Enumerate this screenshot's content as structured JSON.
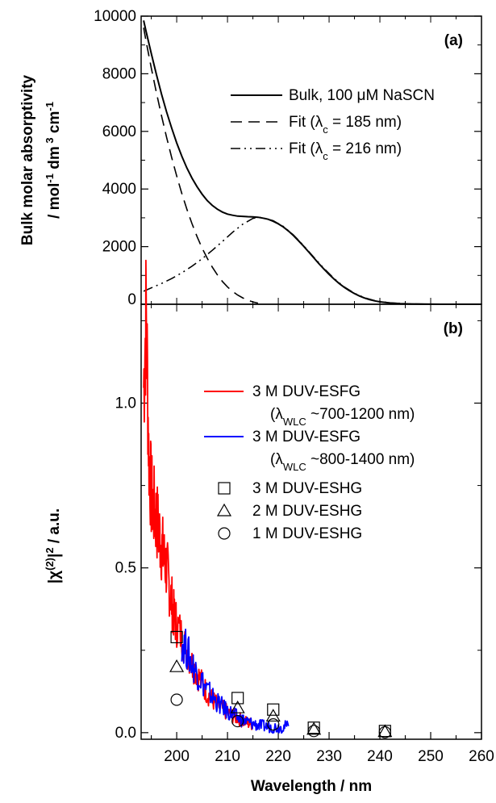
{
  "chart_data": [
    {
      "panel": "(a)",
      "type": "line",
      "xlabel": "Wavelength / nm",
      "ylabel_line1": "Bulk molar absorptivity",
      "ylabel_line2": "/ mol",
      "ylabel_unit_parts": [
        "-1",
        "dm",
        "3",
        "cm",
        "-1"
      ],
      "xlim": [
        193,
        260
      ],
      "ylim": [
        0,
        10000
      ],
      "yticks": [
        "0",
        "2000",
        "4000",
        "6000",
        "8000",
        "10000"
      ],
      "legend_position": "top-right",
      "series": [
        {
          "name": "Bulk, 100 μM NaSCN",
          "legend": {
            "pre": "Bulk, 100 ",
            "greek": "μ",
            "post": "M NaSCN"
          },
          "style": "solid",
          "x": [
            193.5,
            194,
            195,
            196,
            197,
            198,
            199,
            200,
            201,
            202,
            203,
            204,
            205,
            206,
            207,
            208,
            209,
            210,
            211,
            212,
            213,
            214,
            215,
            216,
            217,
            218,
            219,
            220,
            221,
            222,
            223,
            224,
            225,
            226,
            227,
            228,
            229,
            230,
            231,
            232,
            233,
            234,
            235,
            236,
            237,
            238,
            239,
            240,
            242,
            244,
            246,
            248,
            250,
            252,
            254,
            256,
            258,
            260
          ],
          "y": [
            9850,
            9450,
            8700,
            7980,
            7300,
            6680,
            6120,
            5600,
            5140,
            4730,
            4380,
            4080,
            3820,
            3600,
            3430,
            3300,
            3200,
            3130,
            3090,
            3060,
            3050,
            3040,
            3035,
            3020,
            2990,
            2950,
            2880,
            2790,
            2680,
            2540,
            2380,
            2200,
            2010,
            1810,
            1610,
            1410,
            1220,
            1040,
            870,
            720,
            585,
            470,
            370,
            285,
            215,
            160,
            118,
            85,
            45,
            22,
            10,
            5,
            2,
            1,
            0,
            0,
            0,
            0
          ]
        },
        {
          "name": "Fit (λc = 185 nm)",
          "legend": {
            "pre": "Fit (",
            "greek": "λ",
            "sub": "c",
            "post": " = 185 nm)"
          },
          "style": "dashed",
          "x": [
            193.5,
            194,
            195,
            196,
            197,
            198,
            199,
            200,
            201,
            202,
            203,
            204,
            205,
            206,
            207,
            208,
            209,
            210,
            211,
            212,
            213,
            214,
            215,
            216
          ],
          "y": [
            9600,
            9100,
            8200,
            7350,
            6550,
            5800,
            5100,
            4450,
            3850,
            3300,
            2800,
            2350,
            1950,
            1600,
            1290,
            1020,
            790,
            600,
            445,
            320,
            220,
            140,
            80,
            40
          ]
        },
        {
          "name": "Fit (λc = 216 nm)",
          "legend": {
            "pre": "Fit (",
            "greek": "λ",
            "sub": "c",
            "post": " = 216 nm)"
          },
          "style": "dash-dot",
          "x": [
            193.5,
            195,
            197,
            199,
            201,
            203,
            205,
            207,
            209,
            211,
            213,
            215,
            216,
            217,
            219,
            221,
            223,
            225,
            227,
            229,
            231,
            233,
            235,
            237,
            239,
            242,
            246,
            250,
            255,
            260
          ],
          "y": [
            450,
            570,
            720,
            890,
            1090,
            1320,
            1580,
            1870,
            2180,
            2500,
            2780,
            2980,
            3020,
            3000,
            2900,
            2700,
            2400,
            2030,
            1630,
            1240,
            890,
            600,
            380,
            225,
            125,
            45,
            10,
            2,
            0,
            0
          ]
        }
      ]
    },
    {
      "panel": "(b)",
      "type": "line",
      "xlabel": "Wavelength / nm",
      "ylabel": "|χ(2)|2 / a.u.",
      "xlim": [
        193,
        260
      ],
      "ylim": [
        -0.02,
        1.3
      ],
      "xticks": [
        "200",
        "210",
        "220",
        "230",
        "240",
        "250",
        "260"
      ],
      "yticks": [
        "0.0",
        "0.5",
        "1.0"
      ],
      "legend_position": "top-right",
      "series": [
        {
          "name": "3 M DUV-ESFG (λWLC ~700-1200 nm)",
          "legend": {
            "line1": "3 M DUV-ESFG",
            "pre": "(",
            "greek": "λ",
            "sub": "WLC",
            "post": " ~700-1200 nm)"
          },
          "color": "#ff0000",
          "style": "noisy-line",
          "x": [
            193.5,
            194,
            194.5,
            195,
            195.5,
            196,
            196.5,
            197,
            197.5,
            198,
            198.5,
            199,
            199.5,
            200,
            201,
            202,
            203,
            204,
            205,
            206,
            207,
            208,
            209,
            210,
            211,
            212,
            213,
            214,
            215
          ],
          "y": [
            1.05,
            1.28,
            0.85,
            0.72,
            0.68,
            0.65,
            0.61,
            0.57,
            0.53,
            0.5,
            0.45,
            0.4,
            0.35,
            0.33,
            0.29,
            0.25,
            0.21,
            0.18,
            0.15,
            0.12,
            0.1,
            0.085,
            0.072,
            0.06,
            0.05,
            0.045,
            0.035,
            0.03,
            0.025
          ]
        },
        {
          "name": "3 M DUV-ESFG (λWLC ~800-1400 nm)",
          "legend": {
            "line1": "3 M DUV-ESFG",
            "pre": "(",
            "greek": "λ",
            "sub": "WLC",
            "post": " ~800-1400 nm)"
          },
          "color": "#0000ff",
          "style": "noisy-line",
          "x": [
            201,
            202,
            203,
            204,
            205,
            206,
            207,
            208,
            209,
            210,
            211,
            212,
            213,
            214,
            215,
            216,
            217,
            218,
            219,
            220,
            221,
            222
          ],
          "y": [
            0.28,
            0.25,
            0.21,
            0.18,
            0.155,
            0.13,
            0.11,
            0.092,
            0.078,
            0.065,
            0.055,
            0.046,
            0.038,
            0.032,
            0.027,
            0.023,
            0.02,
            0.018,
            0.017,
            0.016,
            0.018,
            0.02
          ]
        },
        {
          "name": "3 M DUV-ESHG",
          "marker": "square",
          "x": [
            200,
            212,
            219,
            227,
            241
          ],
          "y": [
            0.29,
            0.105,
            0.07,
            0.015,
            0.005
          ]
        },
        {
          "name": "2 M DUV-ESHG",
          "marker": "triangle",
          "x": [
            200,
            212,
            219,
            227,
            241
          ],
          "y": [
            0.2,
            0.075,
            0.05,
            0.01,
            0.003
          ]
        },
        {
          "name": "1 M DUV-ESHG",
          "marker": "circle",
          "x": [
            200,
            212,
            219,
            227,
            241
          ],
          "y": [
            0.1,
            0.035,
            0.025,
            0.005,
            0.001
          ]
        }
      ]
    }
  ]
}
